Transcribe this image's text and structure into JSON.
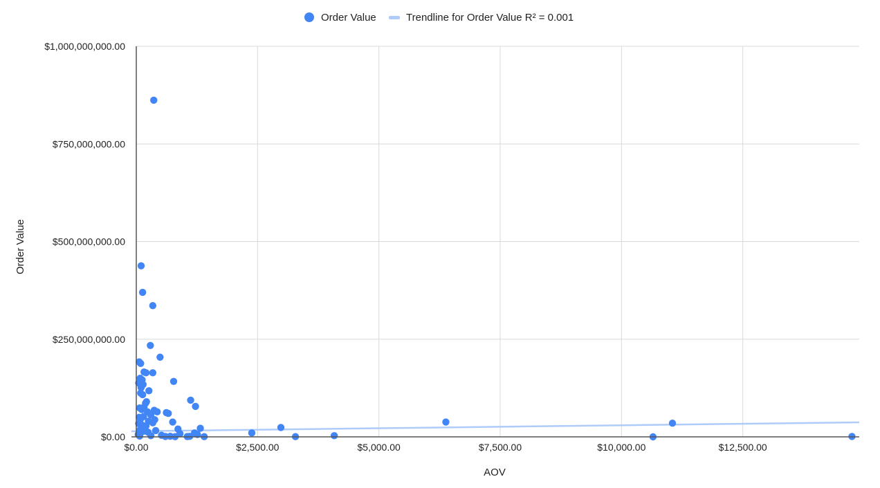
{
  "chart_data": {
    "type": "scatter",
    "xlabel": "AOV",
    "ylabel": "Order Value",
    "xlim": [
      0,
      14900
    ],
    "ylim": [
      0,
      1000000000
    ],
    "x_ticks": [
      0,
      2500,
      5000,
      7500,
      10000,
      12500
    ],
    "y_ticks": [
      0,
      250000000,
      500000000,
      750000000,
      1000000000
    ],
    "x_tick_labels": [
      "$0.00",
      "$2,500.00",
      "$5,000.00",
      "$7,500.00",
      "$10,000.00",
      "$12,500.00"
    ],
    "y_tick_labels": [
      "$0.00",
      "$250,000,000.00",
      "$500,000,000.00",
      "$750,000,000.00",
      "$1,000,000,000.00"
    ],
    "grid": true,
    "legend_position": "top",
    "series": [
      {
        "name": "Order Value",
        "color": "#4285f4",
        "points": [
          [
            360,
            862000000
          ],
          [
            100,
            438000000
          ],
          [
            130,
            370000000
          ],
          [
            340,
            336000000
          ],
          [
            290,
            234000000
          ],
          [
            490,
            204000000
          ],
          [
            60,
            192000000
          ],
          [
            90,
            188000000
          ],
          [
            340,
            164000000
          ],
          [
            770,
            142000000
          ],
          [
            160,
            166000000
          ],
          [
            200,
            164000000
          ],
          [
            80,
            150000000
          ],
          [
            120,
            146000000
          ],
          [
            50,
            138000000
          ],
          [
            140,
            134000000
          ],
          [
            100,
            126000000
          ],
          [
            260,
            118000000
          ],
          [
            90,
            112000000
          ],
          [
            130,
            108000000
          ],
          [
            1120,
            94000000
          ],
          [
            210,
            90000000
          ],
          [
            190,
            86000000
          ],
          [
            1220,
            78000000
          ],
          [
            160,
            76000000
          ],
          [
            70,
            74000000
          ],
          [
            110,
            70000000
          ],
          [
            370,
            68000000
          ],
          [
            430,
            64000000
          ],
          [
            620,
            62000000
          ],
          [
            660,
            60000000
          ],
          [
            230,
            64000000
          ],
          [
            300,
            56000000
          ],
          [
            150,
            52000000
          ],
          [
            60,
            50000000
          ],
          [
            90,
            46000000
          ],
          [
            380,
            44000000
          ],
          [
            250,
            40000000
          ],
          [
            750,
            38000000
          ],
          [
            340,
            36000000
          ],
          [
            50,
            34000000
          ],
          [
            120,
            30000000
          ],
          [
            200,
            28000000
          ],
          [
            160,
            24000000
          ],
          [
            860,
            20000000
          ],
          [
            400,
            16000000
          ],
          [
            1320,
            22000000
          ],
          [
            80,
            18000000
          ],
          [
            140,
            14000000
          ],
          [
            240,
            12000000
          ],
          [
            900,
            8000000
          ],
          [
            1200,
            10000000
          ],
          [
            1260,
            6000000
          ],
          [
            520,
            4000000
          ],
          [
            40,
            6000000
          ],
          [
            70,
            2000000
          ],
          [
            300,
            3000000
          ],
          [
            600,
            1000000
          ],
          [
            700,
            1500000
          ],
          [
            800,
            500000
          ],
          [
            1050,
            800000
          ],
          [
            1100,
            1200000
          ],
          [
            1400,
            500000
          ],
          [
            2380,
            10000000
          ],
          [
            2980,
            24000000
          ],
          [
            3280,
            500000
          ],
          [
            4080,
            3000000
          ],
          [
            6380,
            38000000
          ],
          [
            10650,
            0
          ],
          [
            11050,
            35000000
          ],
          [
            14750,
            1000000
          ]
        ]
      },
      {
        "name": "Trendline for Order Value R² = 0.001",
        "color": "#aecbfa",
        "type": "trendline",
        "line": [
          [
            -100,
            14200000
          ],
          [
            14900,
            37200000
          ]
        ]
      }
    ]
  }
}
